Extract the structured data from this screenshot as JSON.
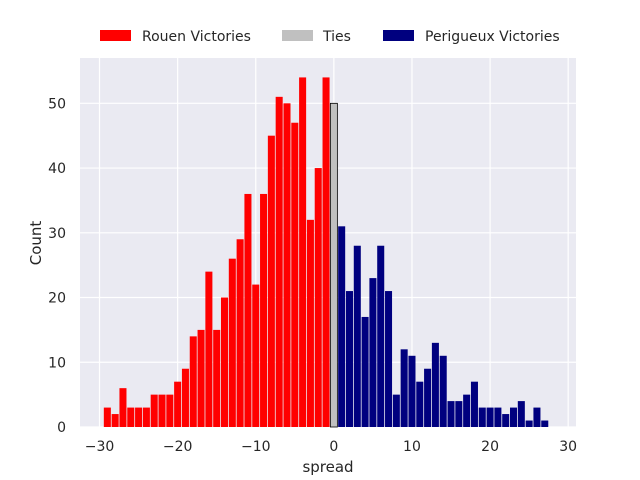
{
  "chart_data": {
    "type": "bar",
    "xlabel": "spread",
    "ylabel": "Count",
    "xlim": [
      -32.5,
      31
    ],
    "ylim": [
      0,
      57
    ],
    "grid": true,
    "legend_placement": "top-center",
    "x_ticks": [
      -30,
      -20,
      -10,
      0,
      10,
      20,
      30
    ],
    "y_ticks": [
      0,
      10,
      20,
      30,
      40,
      50
    ],
    "x_tick_labels": [
      "−30",
      "−20",
      "−10",
      "0",
      "10",
      "20",
      "30"
    ],
    "y_tick_labels": [
      "0",
      "10",
      "20",
      "30",
      "40",
      "50"
    ],
    "colors": {
      "Rouen Victories": "#ff0000",
      "Ties": "#c0c0c0",
      "Perigueux Victories": "#00007f",
      "background": "#eaeaf2",
      "grid": "#ffffff"
    },
    "series": [
      {
        "name": "Rouen Victories",
        "x": [
          -29,
          -28,
          -27,
          -26,
          -25,
          -24,
          -23,
          -22,
          -21,
          -20,
          -19,
          -18,
          -17,
          -16,
          -15,
          -14,
          -13,
          -12,
          -11,
          -10,
          -9,
          -8,
          -7,
          -6,
          -5,
          -4,
          -3,
          -2,
          -1
        ],
        "values": [
          3,
          2,
          6,
          3,
          3,
          3,
          5,
          5,
          5,
          7,
          9,
          14,
          15,
          24,
          15,
          20,
          26,
          29,
          36,
          22,
          36,
          45,
          51,
          50,
          47,
          54,
          32,
          40,
          54
        ]
      },
      {
        "name": "Ties",
        "x": [
          0
        ],
        "values": [
          50
        ]
      },
      {
        "name": "Perigueux Victories",
        "x": [
          1,
          2,
          3,
          4,
          5,
          6,
          7,
          8,
          9,
          10,
          11,
          12,
          13,
          14,
          15,
          16,
          17,
          18,
          19,
          20,
          21,
          22,
          23,
          24,
          25,
          26,
          27,
          28
        ],
        "values": [
          31,
          21,
          28,
          17,
          23,
          28,
          21,
          5,
          12,
          11,
          7,
          9,
          13,
          11,
          4,
          4,
          5,
          7,
          3,
          3,
          3,
          2,
          3,
          4,
          1,
          3,
          1,
          0
        ]
      }
    ]
  }
}
